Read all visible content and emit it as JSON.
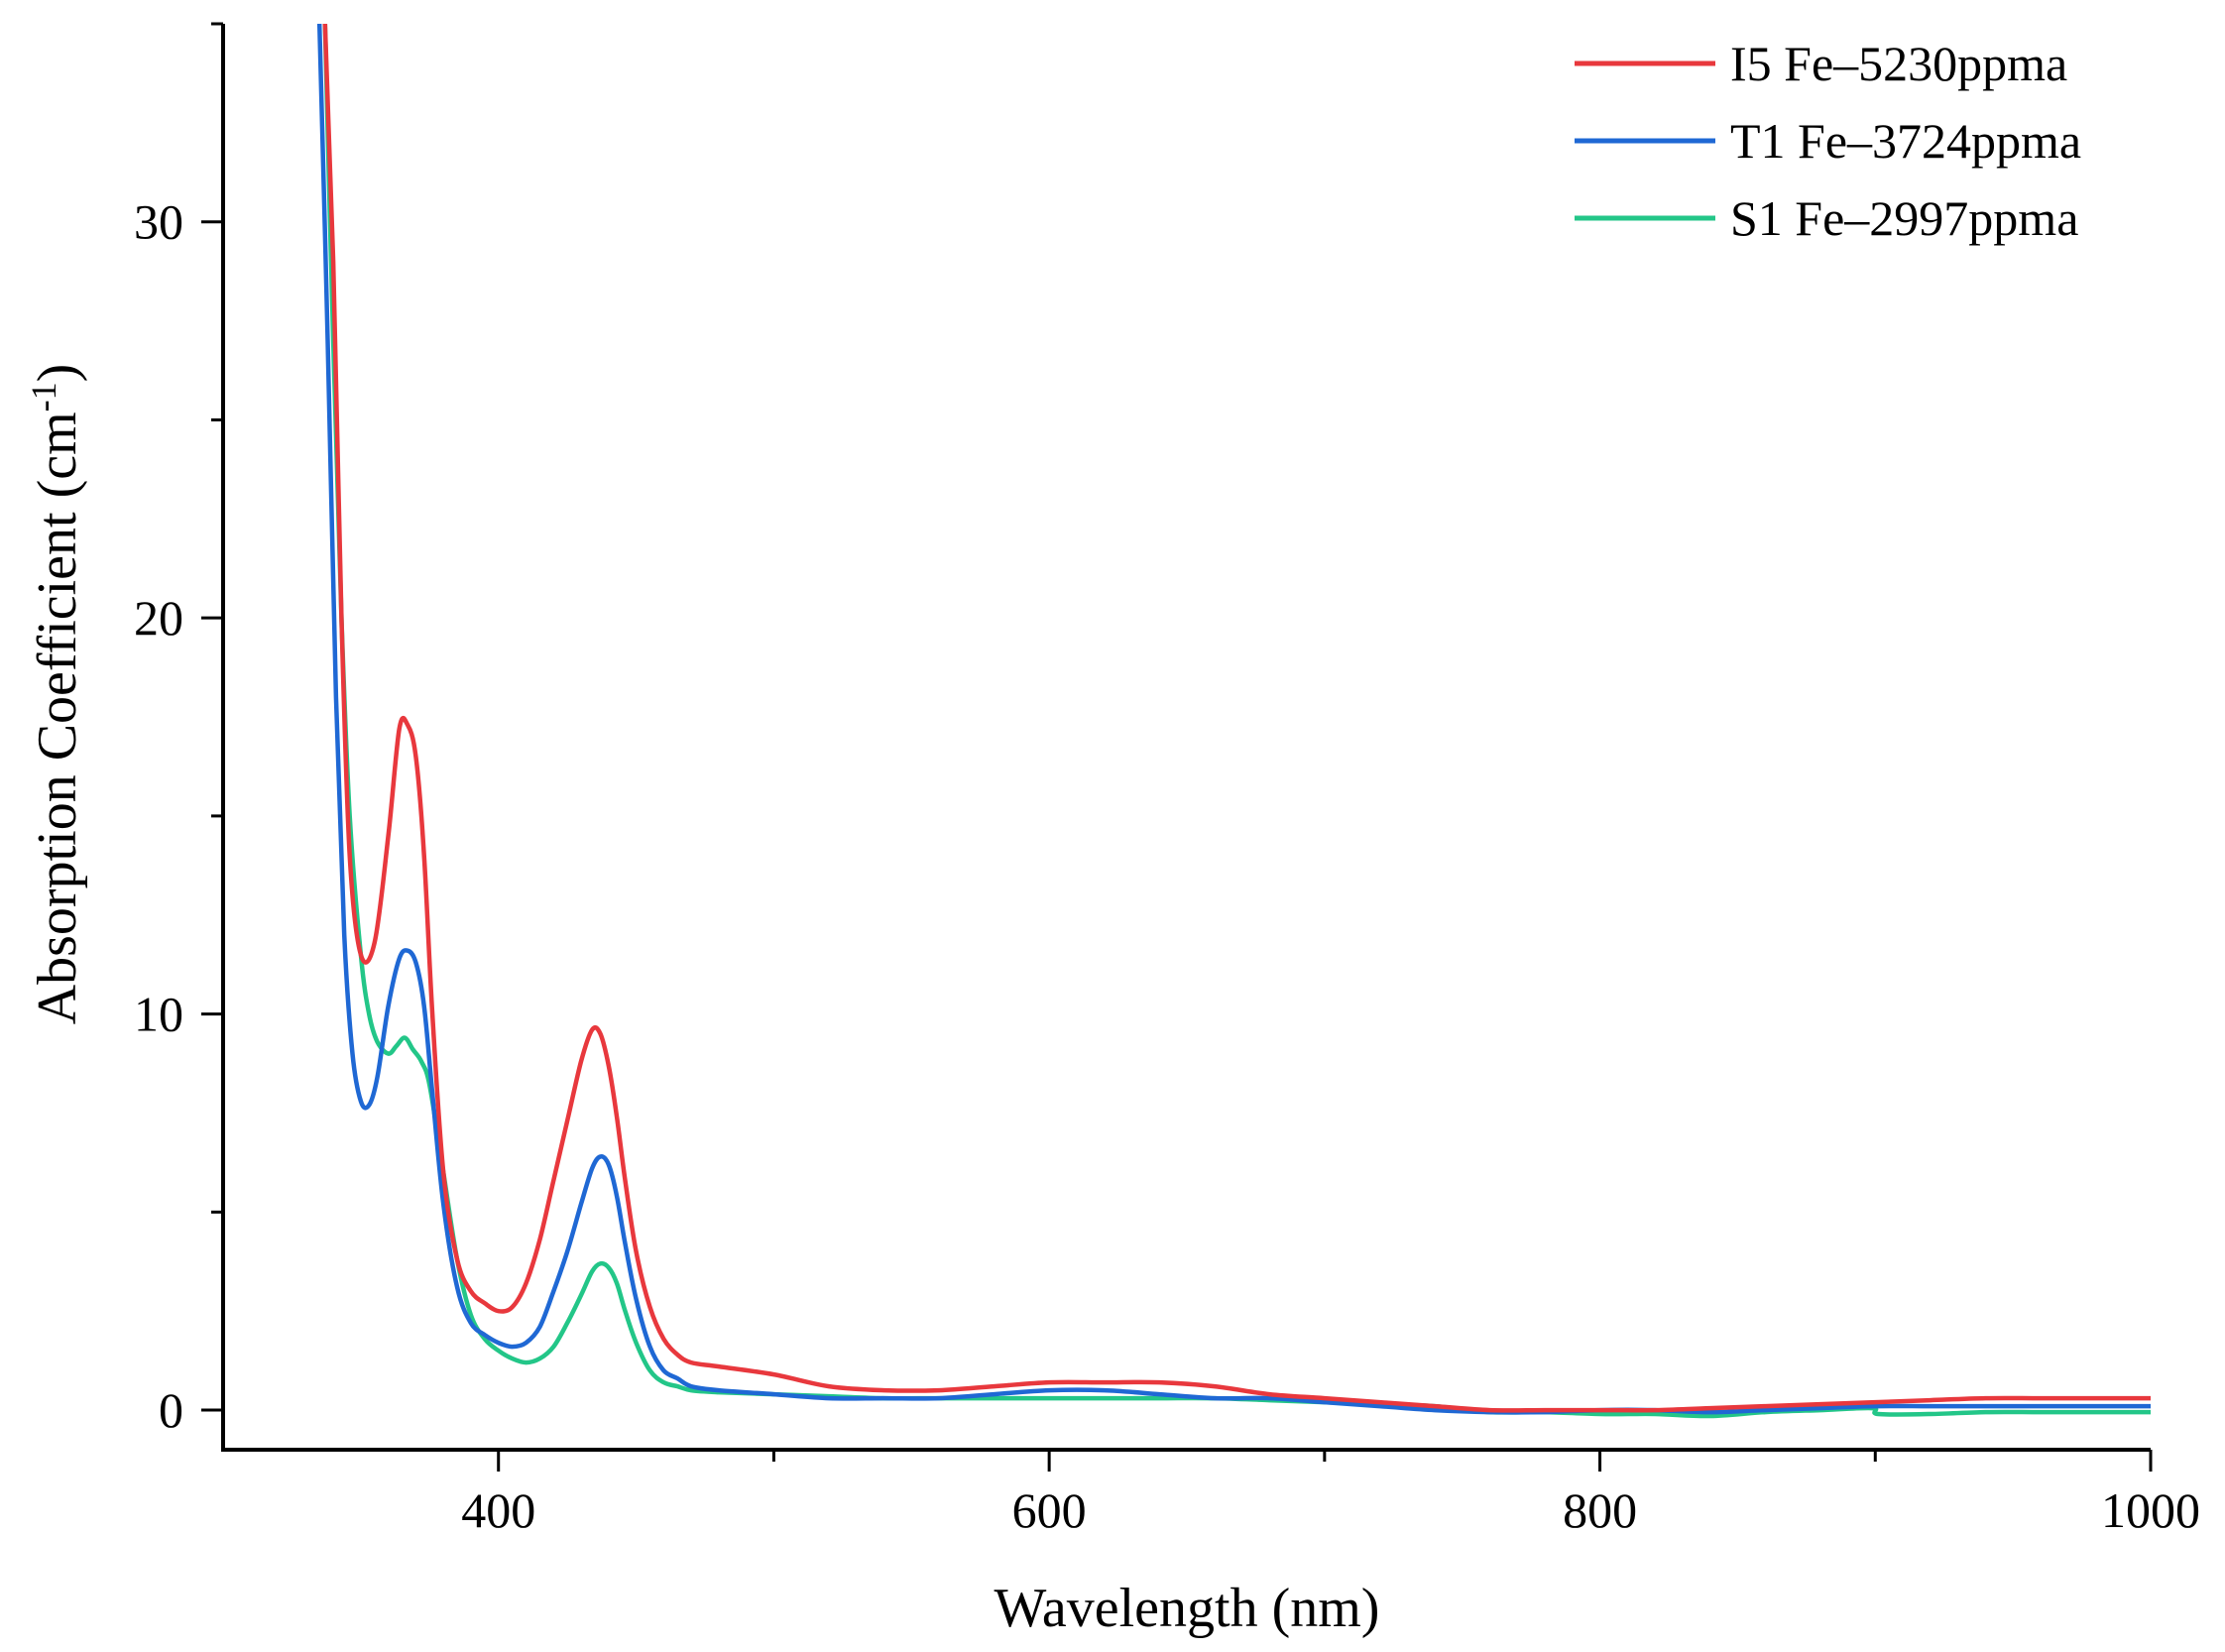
{
  "chart_data": {
    "type": "line",
    "title": "",
    "xlabel": "Wavelength (nm)",
    "ylabel": "Absorption Coefficient (cm",
    "ylabel_sup": "-1",
    "ylabel_close": ")",
    "xlim": [
      300,
      1000
    ],
    "ylim": [
      -1,
      35
    ],
    "xticks": [
      400,
      600,
      800,
      1000
    ],
    "xticks_minor": [
      500,
      700,
      900
    ],
    "yticks": [
      0,
      10,
      20,
      30
    ],
    "yticks_minor": [
      5,
      15,
      25,
      35
    ],
    "legend_position": "top-right",
    "series": [
      {
        "name": "I5  Fe–5230ppma",
        "color": "#e8383d",
        "x": [
          337,
          340,
          343,
          346,
          350,
          355,
          360,
          364,
          367,
          370,
          373,
          376,
          380,
          385,
          390,
          395,
          400,
          405,
          410,
          415,
          420,
          425,
          430,
          434,
          437,
          440,
          443,
          446,
          450,
          455,
          460,
          465,
          470,
          480,
          500,
          520,
          540,
          560,
          580,
          600,
          620,
          640,
          660,
          680,
          700,
          720,
          740,
          760,
          780,
          800,
          820,
          840,
          860,
          880,
          900,
          920,
          940,
          960,
          980,
          1000
        ],
        "y": [
          35,
          29,
          20,
          14,
          11.5,
          11.8,
          14.5,
          17.2,
          17.3,
          16.5,
          14,
          10,
          6,
          3.8,
          3.0,
          2.7,
          2.5,
          2.6,
          3.2,
          4.3,
          5.8,
          7.3,
          8.8,
          9.6,
          9.5,
          8.7,
          7.4,
          5.8,
          4.0,
          2.6,
          1.8,
          1.4,
          1.2,
          1.1,
          0.9,
          0.6,
          0.5,
          0.5,
          0.6,
          0.7,
          0.7,
          0.7,
          0.6,
          0.4,
          0.3,
          0.2,
          0.1,
          0.0,
          0.0,
          0.0,
          0.0,
          0.05,
          0.1,
          0.15,
          0.2,
          0.25,
          0.3,
          0.3,
          0.3,
          0.3
        ]
      },
      {
        "name": "T1 Fe–3724ppma",
        "color": "#1f68d4",
        "x": [
          335,
          338,
          341,
          344,
          347,
          350,
          353,
          356,
          360,
          364,
          367,
          370,
          373,
          376,
          380,
          385,
          390,
          395,
          400,
          405,
          410,
          415,
          420,
          425,
          430,
          434,
          437,
          440,
          443,
          446,
          450,
          455,
          460,
          465,
          470,
          480,
          500,
          520,
          540,
          560,
          580,
          600,
          620,
          640,
          660,
          680,
          700,
          720,
          740,
          760,
          780,
          800,
          820,
          840,
          860,
          880,
          900,
          920,
          940,
          960,
          980,
          1000
        ],
        "y": [
          35,
          27,
          18,
          12,
          9,
          7.8,
          7.7,
          8.4,
          10.2,
          11.4,
          11.6,
          11.3,
          10.2,
          8,
          5.2,
          3.1,
          2.2,
          1.9,
          1.7,
          1.6,
          1.7,
          2.1,
          3.0,
          4.0,
          5.2,
          6.1,
          6.4,
          6.2,
          5.4,
          4.2,
          2.8,
          1.6,
          1.0,
          0.8,
          0.6,
          0.5,
          0.4,
          0.3,
          0.3,
          0.3,
          0.4,
          0.5,
          0.5,
          0.4,
          0.3,
          0.3,
          0.2,
          0.1,
          0.0,
          -0.05,
          -0.05,
          0.0,
          0.0,
          -0.05,
          0.0,
          0.05,
          0.1,
          0.1,
          0.1,
          0.1,
          0.1,
          0.1
        ]
      },
      {
        "name": "S1 Fe–2997ppma",
        "color": "#23c688",
        "x": [
          337,
          340,
          343,
          346,
          350,
          353,
          356,
          360,
          363,
          366,
          369,
          372,
          375,
          380,
          385,
          390,
          395,
          400,
          405,
          410,
          415,
          420,
          425,
          430,
          434,
          437,
          440,
          443,
          446,
          450,
          455,
          460,
          465,
          470,
          480,
          500,
          520,
          540,
          560,
          580,
          600,
          620,
          640,
          660,
          680,
          700,
          720,
          740,
          760,
          780,
          800,
          820,
          840,
          860,
          880,
          899,
          901,
          920,
          940,
          960,
          980,
          1000
        ],
        "y": [
          35,
          27,
          20,
          15,
          11.5,
          10,
          9.3,
          9.0,
          9.2,
          9.4,
          9.1,
          8.8,
          8.2,
          6.0,
          3.8,
          2.4,
          1.8,
          1.5,
          1.3,
          1.2,
          1.3,
          1.6,
          2.2,
          2.9,
          3.5,
          3.7,
          3.6,
          3.2,
          2.5,
          1.7,
          1.0,
          0.7,
          0.6,
          0.5,
          0.45,
          0.4,
          0.35,
          0.3,
          0.3,
          0.3,
          0.3,
          0.3,
          0.3,
          0.3,
          0.25,
          0.2,
          0.15,
          0.1,
          -0.05,
          -0.05,
          -0.1,
          -0.1,
          -0.15,
          -0.05,
          0.0,
          0.05,
          -0.1,
          -0.1,
          -0.05,
          -0.05,
          -0.05,
          -0.05
        ]
      }
    ]
  }
}
